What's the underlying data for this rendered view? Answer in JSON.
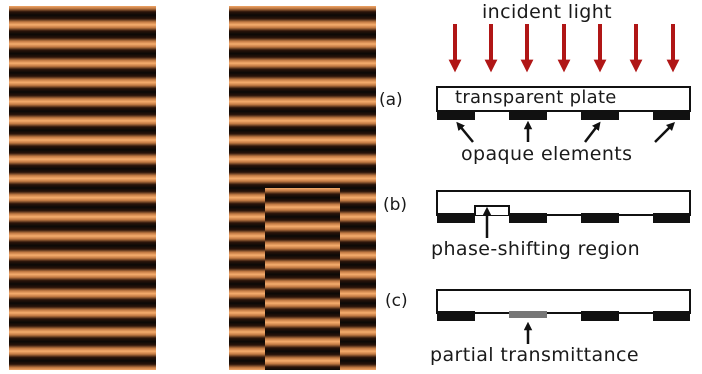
{
  "incident_label": "incident light",
  "panel_a": {
    "tag": "(a)",
    "plate_label": "transparent plate",
    "caption": "opaque elements"
  },
  "panel_b": {
    "tag": "(b)",
    "caption": "phase-shifting region"
  },
  "panel_c": {
    "tag": "(c)",
    "caption": "partial transmittance"
  },
  "colors": {
    "stripe_light": "#f3a86a",
    "stripe_dark": "#0a0806",
    "arrow_red": "#b01616",
    "opaque_black": "#111111",
    "partial_gray": "#777777",
    "outline": "#111111"
  }
}
